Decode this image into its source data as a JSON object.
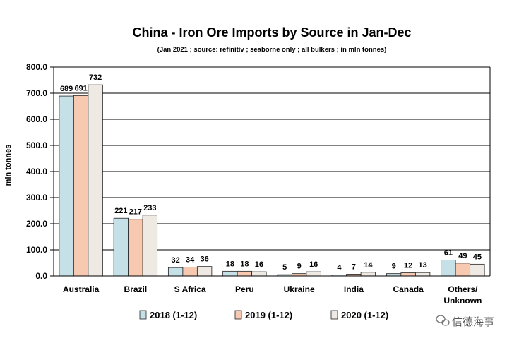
{
  "chart_data": {
    "type": "bar",
    "title": "China - Iron Ore Imports by Source in Jan-Dec",
    "subtitle": "(Jan 2021 ; source: refinitiv ; seaborne only ; all bulkers ; in mln tonnes)",
    "xlabel": "",
    "ylabel": "mln tonnes",
    "ylim": [
      0,
      800
    ],
    "yticks": [
      "0.0",
      "100.0",
      "200.0",
      "300.0",
      "400.0",
      "500.0",
      "600.0",
      "700.0",
      "800.0"
    ],
    "grid": true,
    "legend_position": "bottom",
    "categories": [
      "Australia",
      "Brazil",
      "S Africa",
      "Peru",
      "Ukraine",
      "India",
      "Canada",
      "Others/\nUnknown"
    ],
    "series": [
      {
        "name": "2018 (1-12)",
        "color": "#c5e0e6",
        "values": [
          689,
          221,
          32,
          18,
          5,
          4,
          9,
          61
        ]
      },
      {
        "name": "2019 (1-12)",
        "color": "#f7c9b0",
        "values": [
          691,
          217,
          34,
          18,
          9,
          7,
          12,
          49
        ]
      },
      {
        "name": "2020 (1-12)",
        "color": "#efe9e3",
        "values": [
          732,
          233,
          36,
          16,
          16,
          14,
          13,
          45
        ]
      }
    ]
  },
  "watermark": {
    "text": "信德海事",
    "icon": "wechat-icon"
  }
}
